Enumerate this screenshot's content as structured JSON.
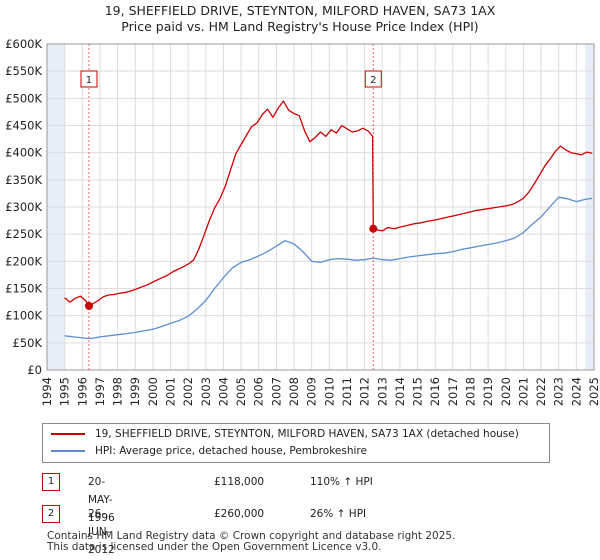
{
  "title": "19, SHEFFIELD DRIVE, STEYNTON, MILFORD HAVEN, SA73 1AX",
  "subtitle": "Price paid vs. HM Land Registry's House Price Index (HPI)",
  "colors": {
    "property": "#cc0000",
    "hpi": "#5b8fd0",
    "grid": "#dddddd",
    "shade": "#e8eef8",
    "marker_line": "#e06666"
  },
  "legend": {
    "property_label": "19, SHEFFIELD DRIVE, STEYNTON, MILFORD HAVEN, SA73 1AX (detached house)",
    "hpi_label": "HPI: Average price, detached house, Pembrokeshire"
  },
  "transactions": [
    {
      "num": "1",
      "date": "20-MAY-1996",
      "price": "£118,000",
      "hpi_change": "110% ↑ HPI",
      "year": 1996.38,
      "value": 118000
    },
    {
      "num": "2",
      "date": "26-JUN-2012",
      "price": "£260,000",
      "hpi_change": "26% ↑ HPI",
      "year": 2012.49,
      "value": 260000
    }
  ],
  "footer_line1": "Contains HM Land Registry data © Crown copyright and database right 2025.",
  "footer_line2": "This data is licensed under the Open Government Licence v3.0.",
  "chart_data": {
    "type": "line",
    "title": "19, SHEFFIELD DRIVE, STEYNTON, MILFORD HAVEN, SA73 1AX",
    "subtitle": "Price paid vs. HM Land Registry's House Price Index (HPI)",
    "xlim": [
      1994,
      2025
    ],
    "ylim": [
      0,
      600000
    ],
    "x_ticks": [
      1994,
      1995,
      1996,
      1997,
      1998,
      1999,
      2000,
      2001,
      2002,
      2003,
      2004,
      2005,
      2006,
      2007,
      2008,
      2009,
      2010,
      2011,
      2012,
      2013,
      2014,
      2015,
      2016,
      2017,
      2018,
      2019,
      2020,
      2021,
      2022,
      2023,
      2024,
      2025
    ],
    "y_ticks": [
      0,
      50000,
      100000,
      150000,
      200000,
      250000,
      300000,
      350000,
      400000,
      450000,
      500000,
      550000,
      600000
    ],
    "y_tick_labels": [
      "£0",
      "£50K",
      "£100K",
      "£150K",
      "£200K",
      "£250K",
      "£300K",
      "£350K",
      "£400K",
      "£450K",
      "£500K",
      "£550K",
      "£600K"
    ],
    "shaded_ranges": [
      [
        1994,
        1995
      ],
      [
        2024.5,
        2025
      ]
    ],
    "series": [
      {
        "name": "19, SHEFFIELD DRIVE, STEYNTON, MILFORD HAVEN, SA73 1AX (detached house)",
        "x": [
          1995.0,
          1995.3,
          1995.6,
          1995.9,
          1996.2,
          1996.38,
          1996.6,
          1996.9,
          1997.2,
          1997.5,
          1997.8,
          1998.1,
          1998.5,
          1998.9,
          1999.3,
          1999.7,
          2000.0,
          2000.4,
          2000.8,
          2001.2,
          2001.6,
          2002.0,
          2002.3,
          2002.6,
          2002.9,
          2003.2,
          2003.5,
          2003.8,
          2004.1,
          2004.4,
          2004.7,
          2005.0,
          2005.3,
          2005.6,
          2005.9,
          2006.2,
          2006.5,
          2006.8,
          2007.1,
          2007.4,
          2007.7,
          2008.0,
          2008.3,
          2008.6,
          2008.9,
          2009.2,
          2009.5,
          2009.8,
          2010.1,
          2010.4,
          2010.7,
          2011.0,
          2011.3,
          2011.6,
          2011.9,
          2012.2,
          2012.45,
          2012.49,
          2012.7,
          2013.0,
          2013.3,
          2013.7,
          2014.0,
          2014.4,
          2014.8,
          2015.2,
          2015.6,
          2016.0,
          2016.4,
          2016.8,
          2017.2,
          2017.6,
          2018.0,
          2018.4,
          2018.8,
          2019.2,
          2019.6,
          2020.0,
          2020.4,
          2020.7,
          2021.0,
          2021.3,
          2021.6,
          2021.9,
          2022.2,
          2022.5,
          2022.8,
          2023.1,
          2023.4,
          2023.7,
          2024.0,
          2024.3,
          2024.6,
          2024.9
        ],
        "values": [
          133000,
          125000,
          132000,
          136000,
          127000,
          118000,
          122000,
          128000,
          135000,
          138000,
          139000,
          141000,
          143000,
          147000,
          152000,
          157000,
          162000,
          168000,
          174000,
          182000,
          188000,
          195000,
          202000,
          222000,
          248000,
          275000,
          298000,
          315000,
          338000,
          368000,
          398000,
          415000,
          432000,
          448000,
          455000,
          470000,
          480000,
          465000,
          482000,
          495000,
          478000,
          472000,
          468000,
          440000,
          420000,
          428000,
          438000,
          430000,
          442000,
          436000,
          450000,
          444000,
          438000,
          440000,
          445000,
          440000,
          430000,
          260000,
          258000,
          256000,
          262000,
          260000,
          263000,
          266000,
          269000,
          271000,
          274000,
          276000,
          279000,
          282000,
          285000,
          288000,
          291000,
          294000,
          296000,
          298000,
          300000,
          302000,
          305000,
          310000,
          316000,
          327000,
          342000,
          358000,
          375000,
          388000,
          402000,
          412000,
          405000,
          400000,
          398000,
          396000,
          401000,
          399000
        ]
      },
      {
        "name": "HPI: Average price, detached house, Pembrokeshire",
        "x": [
          1995.0,
          1995.5,
          1996.0,
          1996.5,
          1997.0,
          1997.5,
          1998.0,
          1998.5,
          1999.0,
          1999.5,
          2000.0,
          2000.5,
          2001.0,
          2001.5,
          2002.0,
          2002.5,
          2003.0,
          2003.5,
          2004.0,
          2004.5,
          2005.0,
          2005.5,
          2006.0,
          2006.5,
          2007.0,
          2007.5,
          2008.0,
          2008.5,
          2009.0,
          2009.5,
          2010.0,
          2010.5,
          2011.0,
          2011.5,
          2012.0,
          2012.5,
          2013.0,
          2013.5,
          2014.0,
          2014.5,
          2015.0,
          2015.5,
          2016.0,
          2016.5,
          2017.0,
          2017.5,
          2018.0,
          2018.5,
          2019.0,
          2019.5,
          2020.0,
          2020.5,
          2021.0,
          2021.5,
          2022.0,
          2022.5,
          2023.0,
          2023.5,
          2024.0,
          2024.5,
          2024.9
        ],
        "values": [
          63000,
          61000,
          59000,
          58000,
          61000,
          63000,
          65000,
          67000,
          69000,
          72000,
          75000,
          80000,
          86000,
          91000,
          99000,
          112000,
          128000,
          150000,
          170000,
          188000,
          198000,
          203000,
          210000,
          218000,
          228000,
          238000,
          232000,
          218000,
          200000,
          198000,
          203000,
          205000,
          204000,
          202000,
          203000,
          206000,
          203000,
          202000,
          205000,
          208000,
          210000,
          212000,
          214000,
          215000,
          218000,
          222000,
          225000,
          228000,
          231000,
          234000,
          238000,
          243000,
          253000,
          268000,
          282000,
          300000,
          318000,
          315000,
          310000,
          314000,
          316000
        ]
      }
    ]
  }
}
